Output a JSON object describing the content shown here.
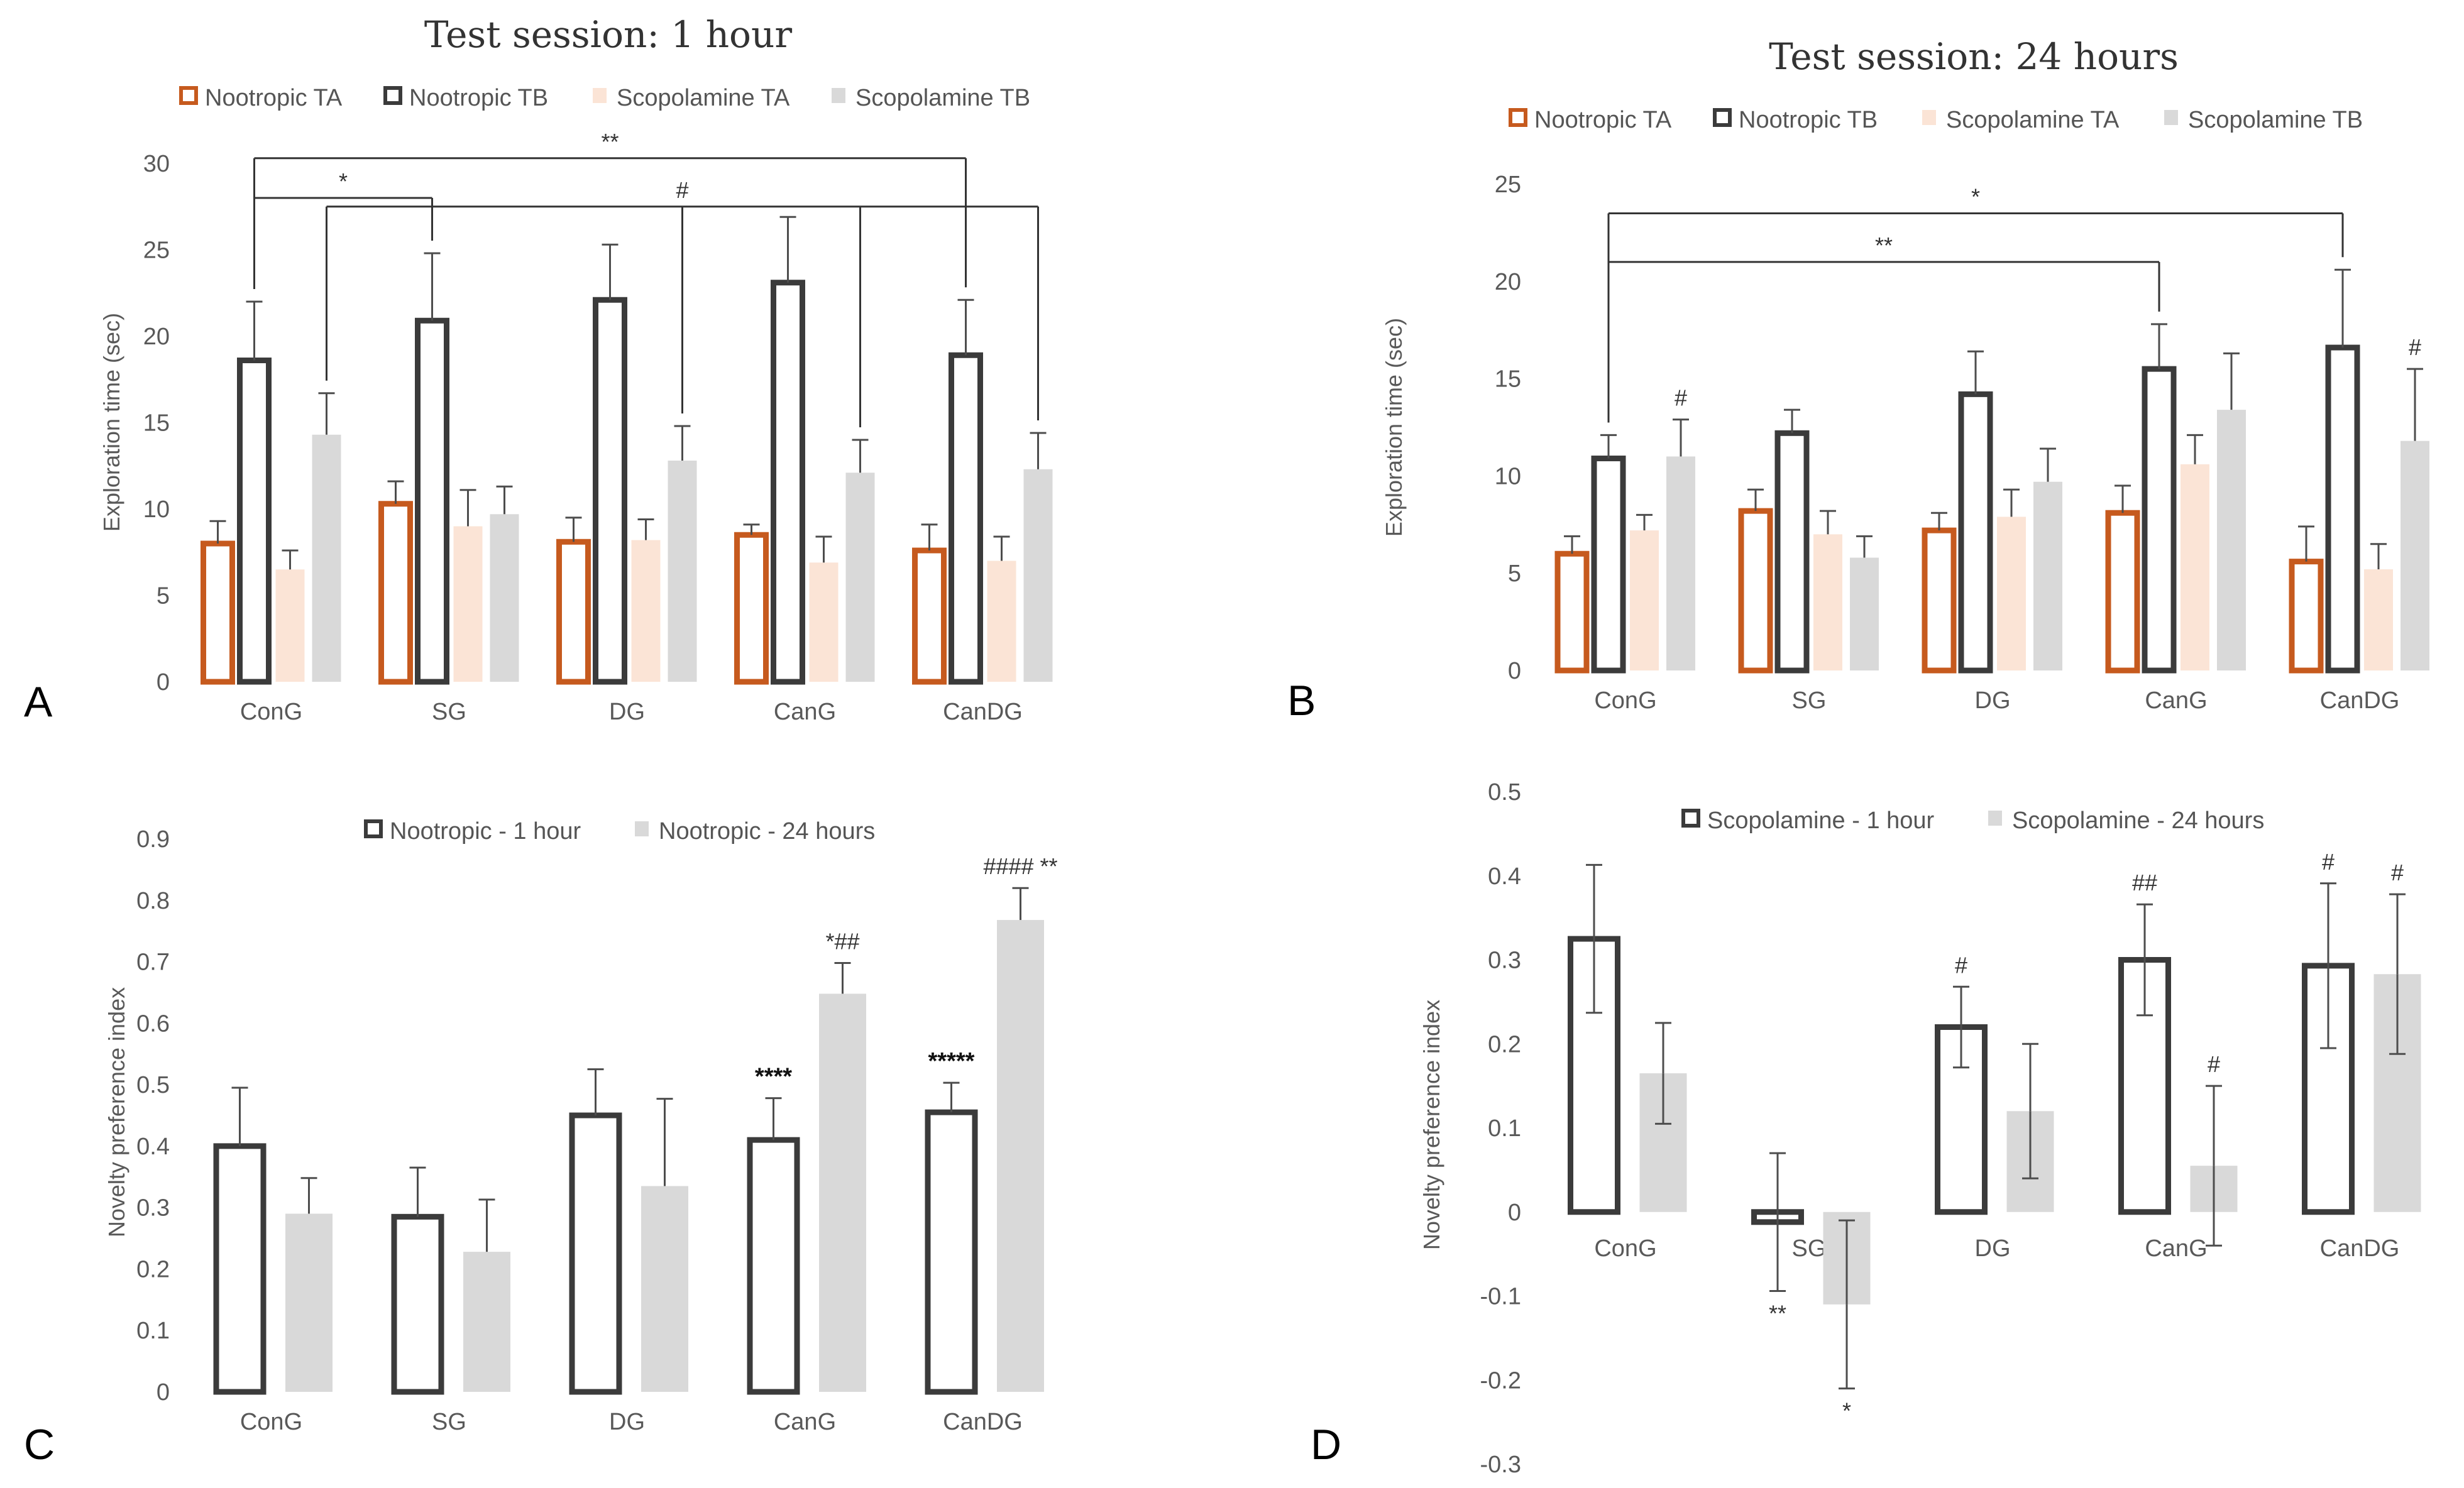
{
  "figure": {
    "colors": {
      "nootropic_ta": "#c65a1e",
      "nootropic_tb": "#3b3b3b",
      "scopolamine_ta": "#fbe4d6",
      "scopolamine_tb": "#d9d9d9",
      "one_hour": "#3b3b3b",
      "twentyfour_hours": "#d9d9d9",
      "error_bar": "#4d4d4d",
      "bracket": "#333333"
    }
  },
  "chart_data": [
    {
      "id": "A",
      "panel_label": "A",
      "type": "bar",
      "title": "Test session: 1 hour",
      "ylabel": "Exploration time (sec)",
      "xlabel": "",
      "ylim": [
        0,
        30
      ],
      "yticks": [
        "0",
        "5",
        "10",
        "15",
        "20",
        "25",
        "30"
      ],
      "categories": [
        "ConG",
        "SG",
        "DG",
        "CanG",
        "CanDG"
      ],
      "legend_position": "top",
      "series": [
        {
          "name": "Nootropic TA",
          "style": "outline",
          "color_key": "nootropic_ta",
          "values": [
            8,
            10.3,
            8.1,
            8.5,
            7.6
          ],
          "errors": [
            1.3,
            1.3,
            1.4,
            0.6,
            1.5
          ]
        },
        {
          "name": "Nootropic TB",
          "style": "outline",
          "color_key": "nootropic_tb",
          "values": [
            18.6,
            20.9,
            22.1,
            23.1,
            18.9
          ],
          "errors": [
            3.4,
            3.9,
            3.2,
            3.8,
            3.2
          ]
        },
        {
          "name": "Scopolamine TA",
          "style": "fill",
          "color_key": "scopolamine_ta",
          "values": [
            6.5,
            9,
            8.2,
            6.9,
            7
          ],
          "errors": [
            1.1,
            2.1,
            1.2,
            1.5,
            1.4
          ]
        },
        {
          "name": "Scopolamine TB",
          "style": "fill",
          "color_key": "scopolamine_tb",
          "values": [
            14.3,
            9.7,
            12.8,
            12.1,
            12.3
          ],
          "errors": [
            2.4,
            1.6,
            2,
            1.9,
            2.1
          ]
        }
      ],
      "annotations": [
        {
          "text": "*",
          "kind": "bracket",
          "from": {
            "cat": 0,
            "series": 1
          },
          "to": [
            {
              "cat": 1,
              "series": 1
            }
          ],
          "level": 28
        },
        {
          "text": "**",
          "kind": "bracket",
          "from": {
            "cat": 0,
            "series": 1
          },
          "to": [
            {
              "cat": 4,
              "series": 1
            }
          ],
          "level": 30.3
        },
        {
          "text": "#",
          "kind": "bracket",
          "from": {
            "cat": 0,
            "series": 3
          },
          "to": [
            {
              "cat": 2,
              "series": 3
            },
            {
              "cat": 3,
              "series": 3
            },
            {
              "cat": 4,
              "series": 3
            }
          ],
          "level": 27.5
        }
      ]
    },
    {
      "id": "B",
      "panel_label": "B",
      "type": "bar",
      "title": "Test session: 24 hours",
      "ylabel": "Exploration time (sec)",
      "xlabel": "",
      "ylim": [
        0,
        25
      ],
      "yticks": [
        "0",
        "5",
        "10",
        "15",
        "20",
        "25"
      ],
      "categories": [
        "ConG",
        "SG",
        "DG",
        "CanG",
        "CanDG"
      ],
      "legend_position": "top",
      "series": [
        {
          "name": "Nootropic TA",
          "style": "outline",
          "color_key": "nootropic_ta",
          "values": [
            6,
            8.2,
            7.2,
            8.1,
            5.6
          ],
          "errors": [
            0.9,
            1.1,
            0.9,
            1.4,
            1.8
          ]
        },
        {
          "name": "Nootropic TB",
          "style": "outline",
          "color_key": "nootropic_tb",
          "values": [
            10.9,
            12.2,
            14.2,
            15.5,
            16.6
          ],
          "errors": [
            1.2,
            1.2,
            2.2,
            2.3,
            4
          ]
        },
        {
          "name": "Scopolamine TA",
          "style": "fill",
          "color_key": "scopolamine_ta",
          "values": [
            7.2,
            7,
            7.9,
            10.6,
            5.2
          ],
          "errors": [
            0.8,
            1.2,
            1.4,
            1.5,
            1.3
          ]
        },
        {
          "name": "Scopolamine TB",
          "style": "fill",
          "color_key": "scopolamine_tb",
          "values": [
            11,
            5.8,
            9.7,
            13.4,
            11.8
          ],
          "errors": [
            1.9,
            1.1,
            1.7,
            2.9,
            3.7
          ]
        }
      ],
      "annotations": [
        {
          "text": "*",
          "kind": "bracket",
          "from": {
            "cat": 0,
            "series": 1
          },
          "to": [
            {
              "cat": 4,
              "series": 1
            }
          ],
          "level": 23.5
        },
        {
          "text": "**",
          "kind": "bracket",
          "from": {
            "cat": 0,
            "series": 1
          },
          "to": [
            {
              "cat": 3,
              "series": 1
            }
          ],
          "level": 21
        },
        {
          "text": "#",
          "kind": "above_bar",
          "cat": 0,
          "series": 3
        },
        {
          "text": "#",
          "kind": "above_bar",
          "cat": 4,
          "series": 3
        }
      ]
    },
    {
      "id": "C",
      "panel_label": "C",
      "type": "bar",
      "title": "",
      "ylabel": "Novelty preference index",
      "xlabel": "",
      "ylim": [
        0,
        0.9
      ],
      "yticks": [
        "0",
        "0.1",
        "0.2",
        "0.3",
        "0.4",
        "0.5",
        "0.6",
        "0.7",
        "0.8",
        "0.9"
      ],
      "categories": [
        "ConG",
        "SG",
        "DG",
        "CanG",
        "CanDG"
      ],
      "legend_position": "top",
      "series": [
        {
          "name": "Nootropic - 1 hour",
          "style": "outline",
          "color_key": "one_hour",
          "values": [
            0.4,
            0.285,
            0.45,
            0.41,
            0.455
          ],
          "errors": [
            0.095,
            0.08,
            0.075,
            0.068,
            0.048
          ]
        },
        {
          "name": "Nootropic - 24 hours",
          "style": "fill",
          "color_key": "twentyfour_hours",
          "values": [
            0.29,
            0.228,
            0.335,
            0.648,
            0.768
          ],
          "errors": [
            0.058,
            0.085,
            0.142,
            0.05,
            0.052
          ]
        }
      ],
      "annotations": [
        {
          "text": "****",
          "kind": "above_bar",
          "cat": 3,
          "series": 0,
          "bold": true
        },
        {
          "text": "*##",
          "kind": "above_bar",
          "cat": 3,
          "series": 1
        },
        {
          "text": "*****",
          "kind": "above_bar",
          "cat": 4,
          "series": 0,
          "bold": true
        },
        {
          "text": "#### **",
          "kind": "above_bar",
          "cat": 4,
          "series": 1
        }
      ]
    },
    {
      "id": "D",
      "panel_label": "D",
      "type": "bar",
      "title": "",
      "ylabel": "Novelty preference index",
      "xlabel": "",
      "ylim": [
        -0.3,
        0.5
      ],
      "yticks": [
        "-0.3",
        "-0.2",
        "-0.1",
        "0",
        "0.1",
        "0.2",
        "0.3",
        "0.4",
        "0.5"
      ],
      "categories": [
        "ConG",
        "SG",
        "DG",
        "CanG",
        "CanDG"
      ],
      "legend_position": "top",
      "series": [
        {
          "name": "Scopolamine - 1 hour",
          "style": "outline",
          "color_key": "one_hour",
          "values": [
            0.325,
            -0.012,
            0.22,
            0.3,
            0.293
          ],
          "errors": [
            0.088,
            0.082,
            0.048,
            0.066,
            0.098
          ]
        },
        {
          "name": "Scopolamine - 24 hours",
          "style": "fill",
          "color_key": "twentyfour_hours",
          "values": [
            0.165,
            -0.11,
            0.12,
            0.055,
            0.283
          ],
          "errors": [
            0.06,
            0.1,
            0.08,
            0.095,
            0.095
          ]
        }
      ],
      "annotations": [
        {
          "text": "**",
          "kind": "below_bar",
          "cat": 1,
          "series": 0
        },
        {
          "text": "*",
          "kind": "below_bar",
          "cat": 1,
          "series": 1
        },
        {
          "text": "#",
          "kind": "above_bar",
          "cat": 2,
          "series": 0
        },
        {
          "text": "##",
          "kind": "above_bar",
          "cat": 3,
          "series": 0
        },
        {
          "text": "#",
          "kind": "above_bar",
          "cat": 3,
          "series": 1
        },
        {
          "text": "#",
          "kind": "above_bar",
          "cat": 4,
          "series": 0
        },
        {
          "text": "#",
          "kind": "above_bar",
          "cat": 4,
          "series": 1
        }
      ]
    }
  ]
}
